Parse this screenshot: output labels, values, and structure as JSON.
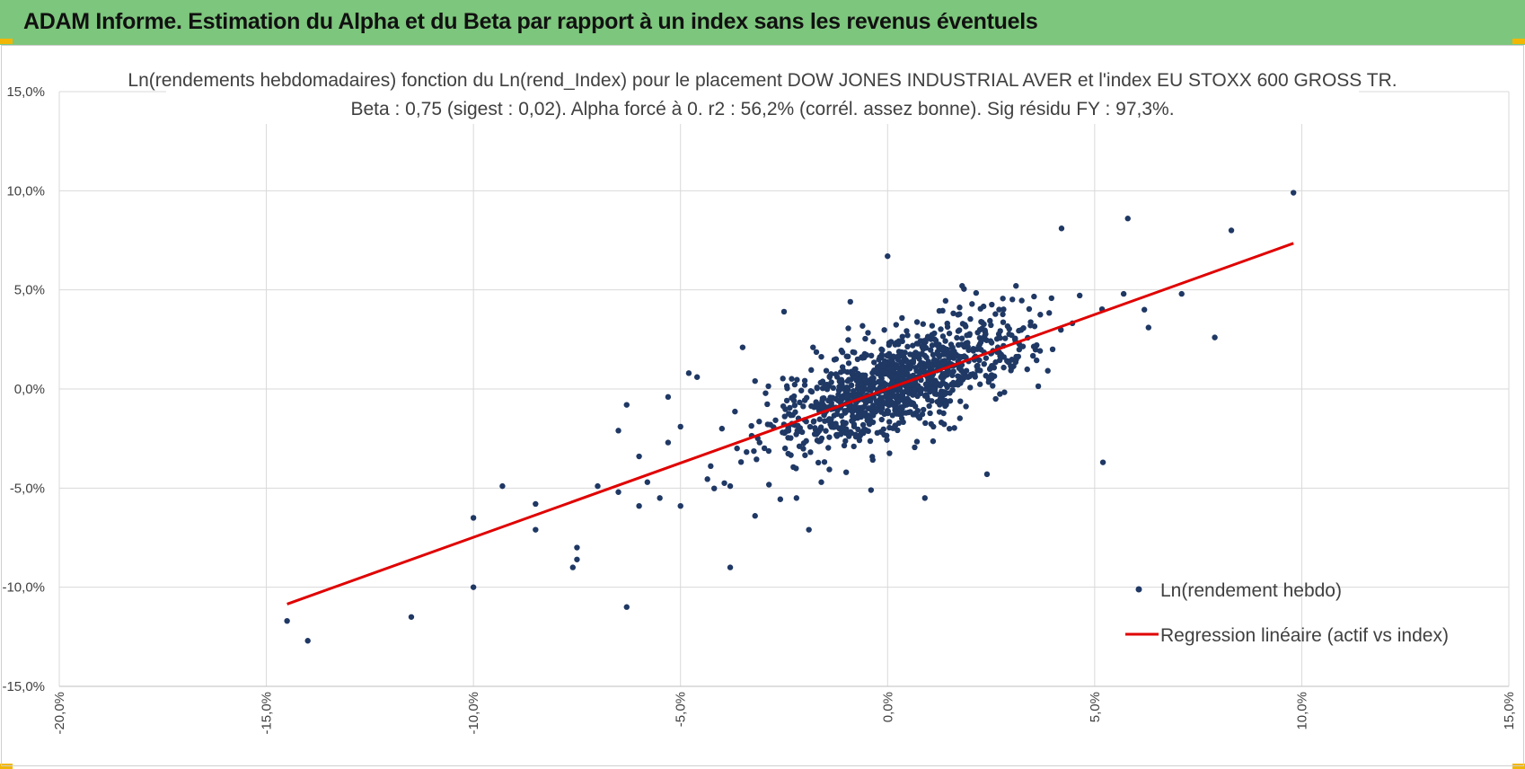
{
  "banner": {
    "title": "ADAM Informe. Estimation du Alpha et du Beta par rapport à un index sans les revenus éventuels"
  },
  "colors": {
    "banner_bg": "#7dc67d",
    "accent_corner": "#f2b705",
    "points": "#1f3864",
    "regression": "#e00000",
    "grid": "#d9d9d9"
  },
  "chart_data": {
    "type": "scatter",
    "title": "Ln(rendements hebdomadaires) fonction du Ln(rend_Index) pour le placement DOW JONES INDUSTRIAL AVER et l'index EU STOXX 600 GROSS TR.",
    "subtitle": "Beta : 0,75 (sigest : 0,02). Alpha forcé à 0. r2 : 56,2% (corrél. assez bonne). Sig résidu FY : 97,3%.",
    "xlim": [
      -20,
      15
    ],
    "ylim": [
      -15,
      15
    ],
    "x_ticks": [
      "-20,0%",
      "-15,0%",
      "-10,0%",
      "-5,0%",
      "0,0%",
      "5,0%",
      "10,0%",
      "15,0%"
    ],
    "y_ticks": [
      "15,0%",
      "10,0%",
      "5,0%",
      "0,0%",
      "-5,0%",
      "-10,0%",
      "-15,0%"
    ],
    "grid": true,
    "legend_position": "bottom-right",
    "series": [
      {
        "name": "Ln(rendement hebdo)",
        "kind": "points",
        "points": [
          [
            -14.5,
            -11.7
          ],
          [
            -14.0,
            -12.7
          ],
          [
            -11.5,
            -11.5
          ],
          [
            -10.0,
            -10.0
          ],
          [
            -10.0,
            -6.5
          ],
          [
            -9.3,
            -4.9
          ],
          [
            -8.5,
            -5.8
          ],
          [
            -8.5,
            -7.1
          ],
          [
            -7.5,
            -8.0
          ],
          [
            -7.5,
            -8.6
          ],
          [
            -7.6,
            -9.0
          ],
          [
            -7.0,
            -4.9
          ],
          [
            -6.5,
            -5.2
          ],
          [
            -6.3,
            -11.0
          ],
          [
            -6.3,
            -0.8
          ],
          [
            -6.5,
            -2.1
          ],
          [
            -6.0,
            -5.9
          ],
          [
            -6.0,
            -3.4
          ],
          [
            -5.8,
            -4.7
          ],
          [
            -5.5,
            -5.5
          ],
          [
            -5.3,
            -2.7
          ],
          [
            -5.3,
            -0.4
          ],
          [
            -5.0,
            -5.9
          ],
          [
            -5.0,
            -1.9
          ],
          [
            -4.8,
            0.8
          ],
          [
            -4.6,
            0.6
          ],
          [
            -4.0,
            -2.0
          ],
          [
            -3.8,
            -9.0
          ],
          [
            -3.8,
            -4.9
          ],
          [
            -3.5,
            2.1
          ],
          [
            -3.2,
            0.4
          ],
          [
            -3.2,
            -6.4
          ],
          [
            -2.5,
            3.9
          ],
          [
            -2.4,
            -2.0
          ],
          [
            -2.2,
            -5.5
          ],
          [
            -2.0,
            0.2
          ],
          [
            -1.9,
            -7.1
          ],
          [
            -1.8,
            2.1
          ],
          [
            -1.6,
            -4.7
          ],
          [
            -1.4,
            0.6
          ],
          [
            -1.0,
            -4.2
          ],
          [
            -0.9,
            4.4
          ],
          [
            -0.4,
            -5.1
          ],
          [
            0.0,
            6.7
          ],
          [
            0.9,
            -5.5
          ],
          [
            1.8,
            5.2
          ],
          [
            2.4,
            -4.3
          ],
          [
            3.1,
            5.2
          ],
          [
            4.2,
            8.1
          ],
          [
            5.2,
            -3.7
          ],
          [
            5.7,
            4.8
          ],
          [
            5.8,
            8.6
          ],
          [
            6.2,
            4.0
          ],
          [
            6.3,
            3.1
          ],
          [
            7.1,
            4.8
          ],
          [
            7.9,
            2.6
          ],
          [
            8.3,
            8.0
          ],
          [
            9.8,
            9.9
          ]
        ]
      },
      {
        "name": "Regression linéaire (actif vs index)",
        "kind": "line",
        "points": [
          [
            -14.5,
            -10.85
          ],
          [
            9.8,
            7.35
          ]
        ]
      }
    ]
  }
}
